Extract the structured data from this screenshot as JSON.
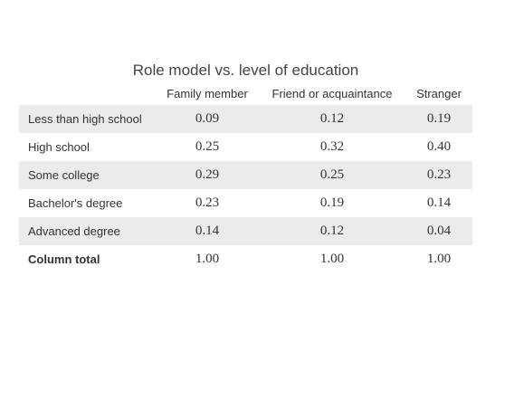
{
  "table": {
    "title": "Role model vs. level of education",
    "columns": [
      "",
      "Family member",
      "Friend or acquaintance",
      "Stranger"
    ],
    "rows": [
      [
        "Less than high school",
        "0.09",
        "0.12",
        "0.19"
      ],
      [
        "High school",
        "0.25",
        "0.32",
        "0.40"
      ],
      [
        "Some college",
        "0.29",
        "0.25",
        "0.23"
      ],
      [
        "Bachelor's degree",
        "0.23",
        "0.19",
        "0.14"
      ],
      [
        "Advanced degree",
        "0.14",
        "0.12",
        "0.04"
      ],
      [
        "Column total",
        "1.00",
        "1.00",
        "1.00"
      ]
    ]
  }
}
